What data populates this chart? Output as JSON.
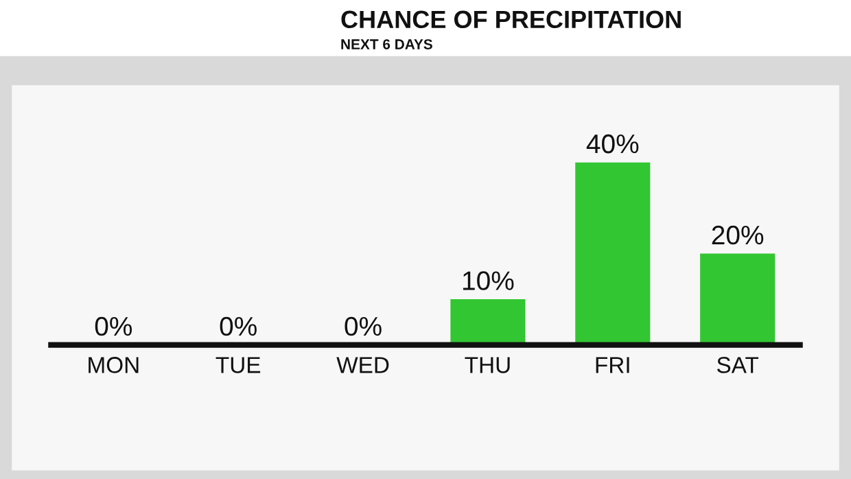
{
  "chart_data": {
    "type": "bar",
    "title": "CHANCE OF PRECIPITATION",
    "subtitle": "NEXT 6 DAYS",
    "categories": [
      "MON",
      "TUE",
      "WED",
      "THU",
      "FRI",
      "SAT"
    ],
    "values": [
      0,
      0,
      0,
      10,
      40,
      20
    ],
    "value_labels": [
      "0%",
      "0%",
      "0%",
      "10%",
      "40%",
      "20%"
    ],
    "color": "#33c633",
    "grid": false,
    "legend": false
  }
}
